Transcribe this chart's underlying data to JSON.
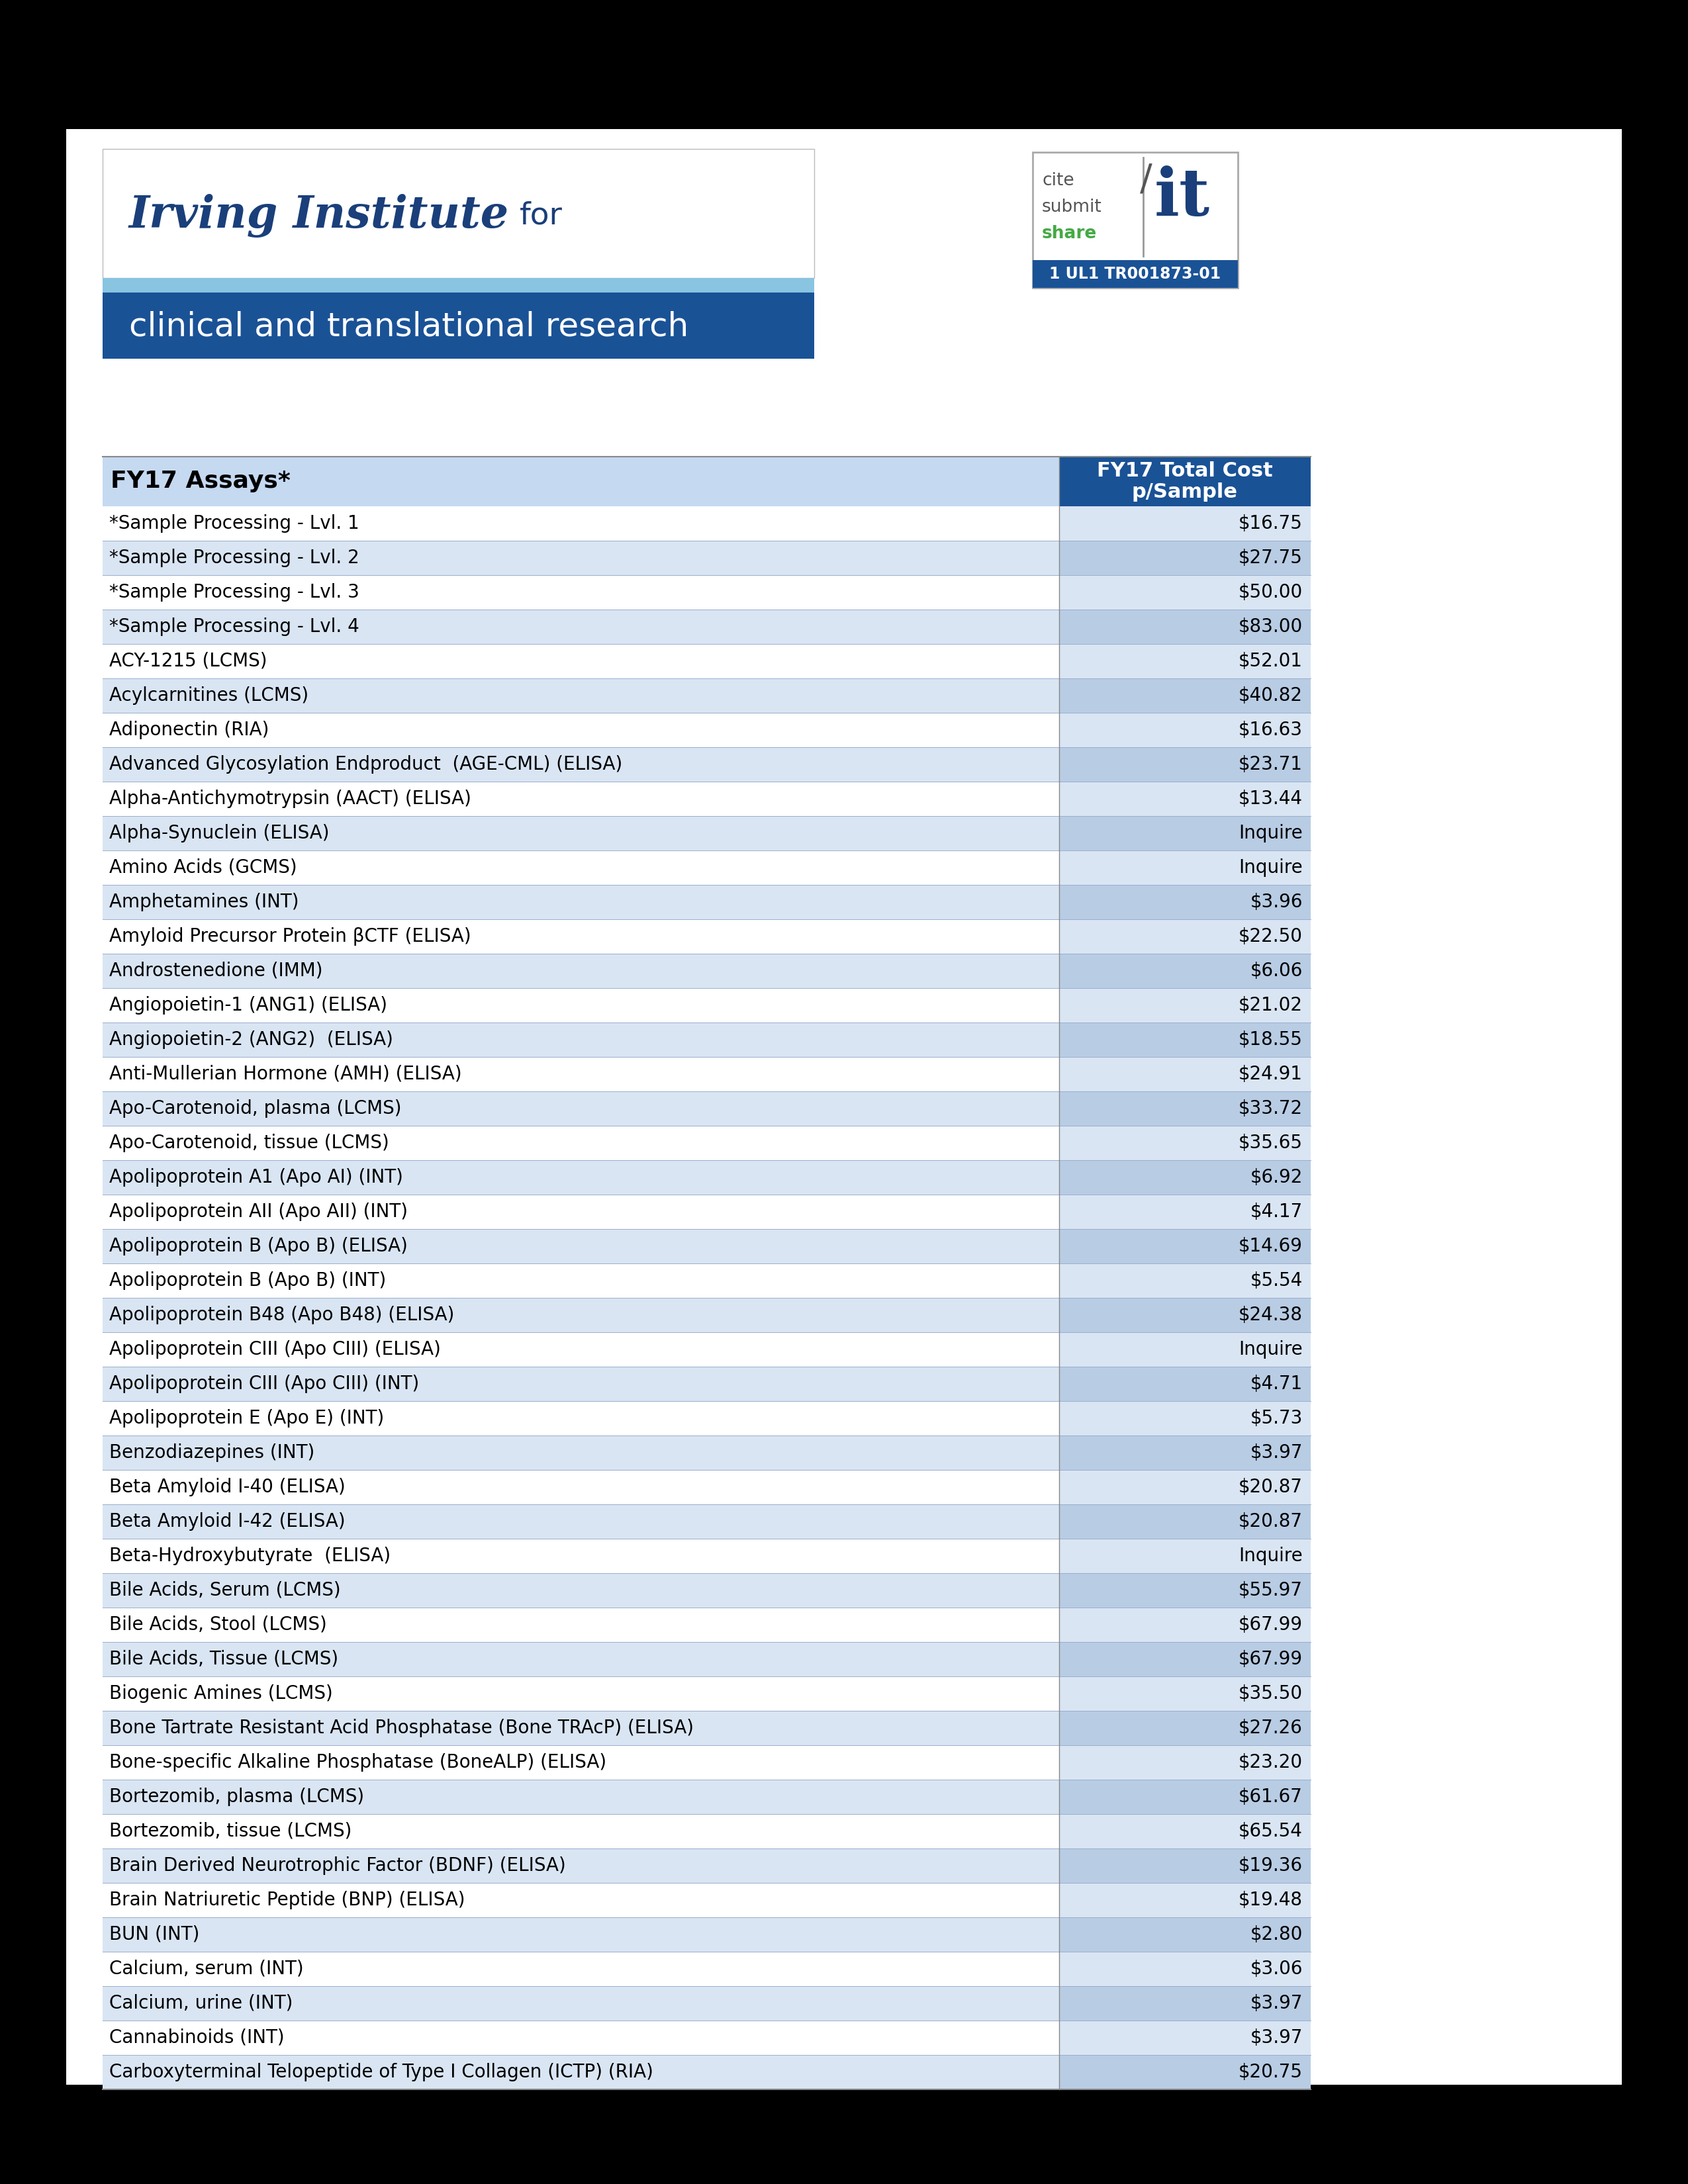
{
  "background_color": "#000000",
  "page_bg": "#ffffff",
  "header_bar_light": "#89c4e1",
  "header_bar_dark": "#1a5296",
  "header_text": "clinical and translational research",
  "cite_it_url": "1 UL1 TR001873-01",
  "table_header_bg": "#c5d9f1",
  "table_row_bg_alt": "#d9e5f3",
  "table_row_bg_white": "#ffffff",
  "col_header_price_bg": "#1a5296",
  "col_header_price_text": "#ffffff",
  "col_header_assay_text": "#000000",
  "assay_col_header": "FY17 Assays*",
  "price_col_header1": "FY17 Total Cost",
  "price_col_header2": "p/Sample",
  "rows": [
    [
      "*Sample Processing - Lvl. 1",
      "$16.75"
    ],
    [
      "*Sample Processing - Lvl. 2",
      "$27.75"
    ],
    [
      "*Sample Processing - Lvl. 3",
      "$50.00"
    ],
    [
      "*Sample Processing - Lvl. 4",
      "$83.00"
    ],
    [
      "ACY-1215 (LCMS)",
      "$52.01"
    ],
    [
      "Acylcarnitines (LCMS)",
      "$40.82"
    ],
    [
      "Adiponectin (RIA)",
      "$16.63"
    ],
    [
      "Advanced Glycosylation Endproduct  (AGE-CML) (ELISA)",
      "$23.71"
    ],
    [
      "Alpha-Antichymotrypsin (AACT) (ELISA)",
      "$13.44"
    ],
    [
      "Alpha-Synuclein (ELISA)",
      "Inquire"
    ],
    [
      "Amino Acids (GCMS)",
      "Inquire"
    ],
    [
      "Amphetamines (INT)",
      "$3.96"
    ],
    [
      "Amyloid Precursor Protein βCTF (ELISA)",
      "$22.50"
    ],
    [
      "Androstenedione (IMM)",
      "$6.06"
    ],
    [
      "Angiopoietin-1 (ANG1) (ELISA)",
      "$21.02"
    ],
    [
      "Angiopoietin-2 (ANG2)  (ELISA)",
      "$18.55"
    ],
    [
      "Anti-Mullerian Hormone (AMH) (ELISA)",
      "$24.91"
    ],
    [
      "Apo-Carotenoid, plasma (LCMS)",
      "$33.72"
    ],
    [
      "Apo-Carotenoid, tissue (LCMS)",
      "$35.65"
    ],
    [
      "Apolipoprotein A1 (Apo AI) (INT)",
      "$6.92"
    ],
    [
      "Apolipoprotein AII (Apo AII) (INT)",
      "$4.17"
    ],
    [
      "Apolipoprotein B (Apo B) (ELISA)",
      "$14.69"
    ],
    [
      "Apolipoprotein B (Apo B) (INT)",
      "$5.54"
    ],
    [
      "Apolipoprotein B48 (Apo B48) (ELISA)",
      "$24.38"
    ],
    [
      "Apolipoprotein CIII (Apo CIII) (ELISA)",
      "Inquire"
    ],
    [
      "Apolipoprotein CIII (Apo CIII) (INT)",
      "$4.71"
    ],
    [
      "Apolipoprotein E (Apo E) (INT)",
      "$5.73"
    ],
    [
      "Benzodiazepines (INT)",
      "$3.97"
    ],
    [
      "Beta Amyloid I-40 (ELISA)",
      "$20.87"
    ],
    [
      "Beta Amyloid I-42 (ELISA)",
      "$20.87"
    ],
    [
      "Beta-Hydroxybutyrate  (ELISA)",
      "Inquire"
    ],
    [
      "Bile Acids, Serum (LCMS)",
      "$55.97"
    ],
    [
      "Bile Acids, Stool (LCMS)",
      "$67.99"
    ],
    [
      "Bile Acids, Tissue (LCMS)",
      "$67.99"
    ],
    [
      "Biogenic Amines (LCMS)",
      "$35.50"
    ],
    [
      "Bone Tartrate Resistant Acid Phosphatase (Bone TRAcP) (ELISA)",
      "$27.26"
    ],
    [
      "Bone-specific Alkaline Phosphatase (BoneALP) (ELISA)",
      "$23.20"
    ],
    [
      "Bortezomib, plasma (LCMS)",
      "$61.67"
    ],
    [
      "Bortezomib, tissue (LCMS)",
      "$65.54"
    ],
    [
      "Brain Derived Neurotrophic Factor (BDNF) (ELISA)",
      "$19.36"
    ],
    [
      "Brain Natriuretic Peptide (BNP) (ELISA)",
      "$19.48"
    ],
    [
      "BUN (INT)",
      "$2.80"
    ],
    [
      "Calcium, serum (INT)",
      "$3.06"
    ],
    [
      "Calcium, urine (INT)",
      "$3.97"
    ],
    [
      "Cannabinoids (INT)",
      "$3.97"
    ],
    [
      "Carboxyterminal Telopeptide of Type I Collagen (ICTP) (RIA)",
      "$20.75"
    ]
  ]
}
